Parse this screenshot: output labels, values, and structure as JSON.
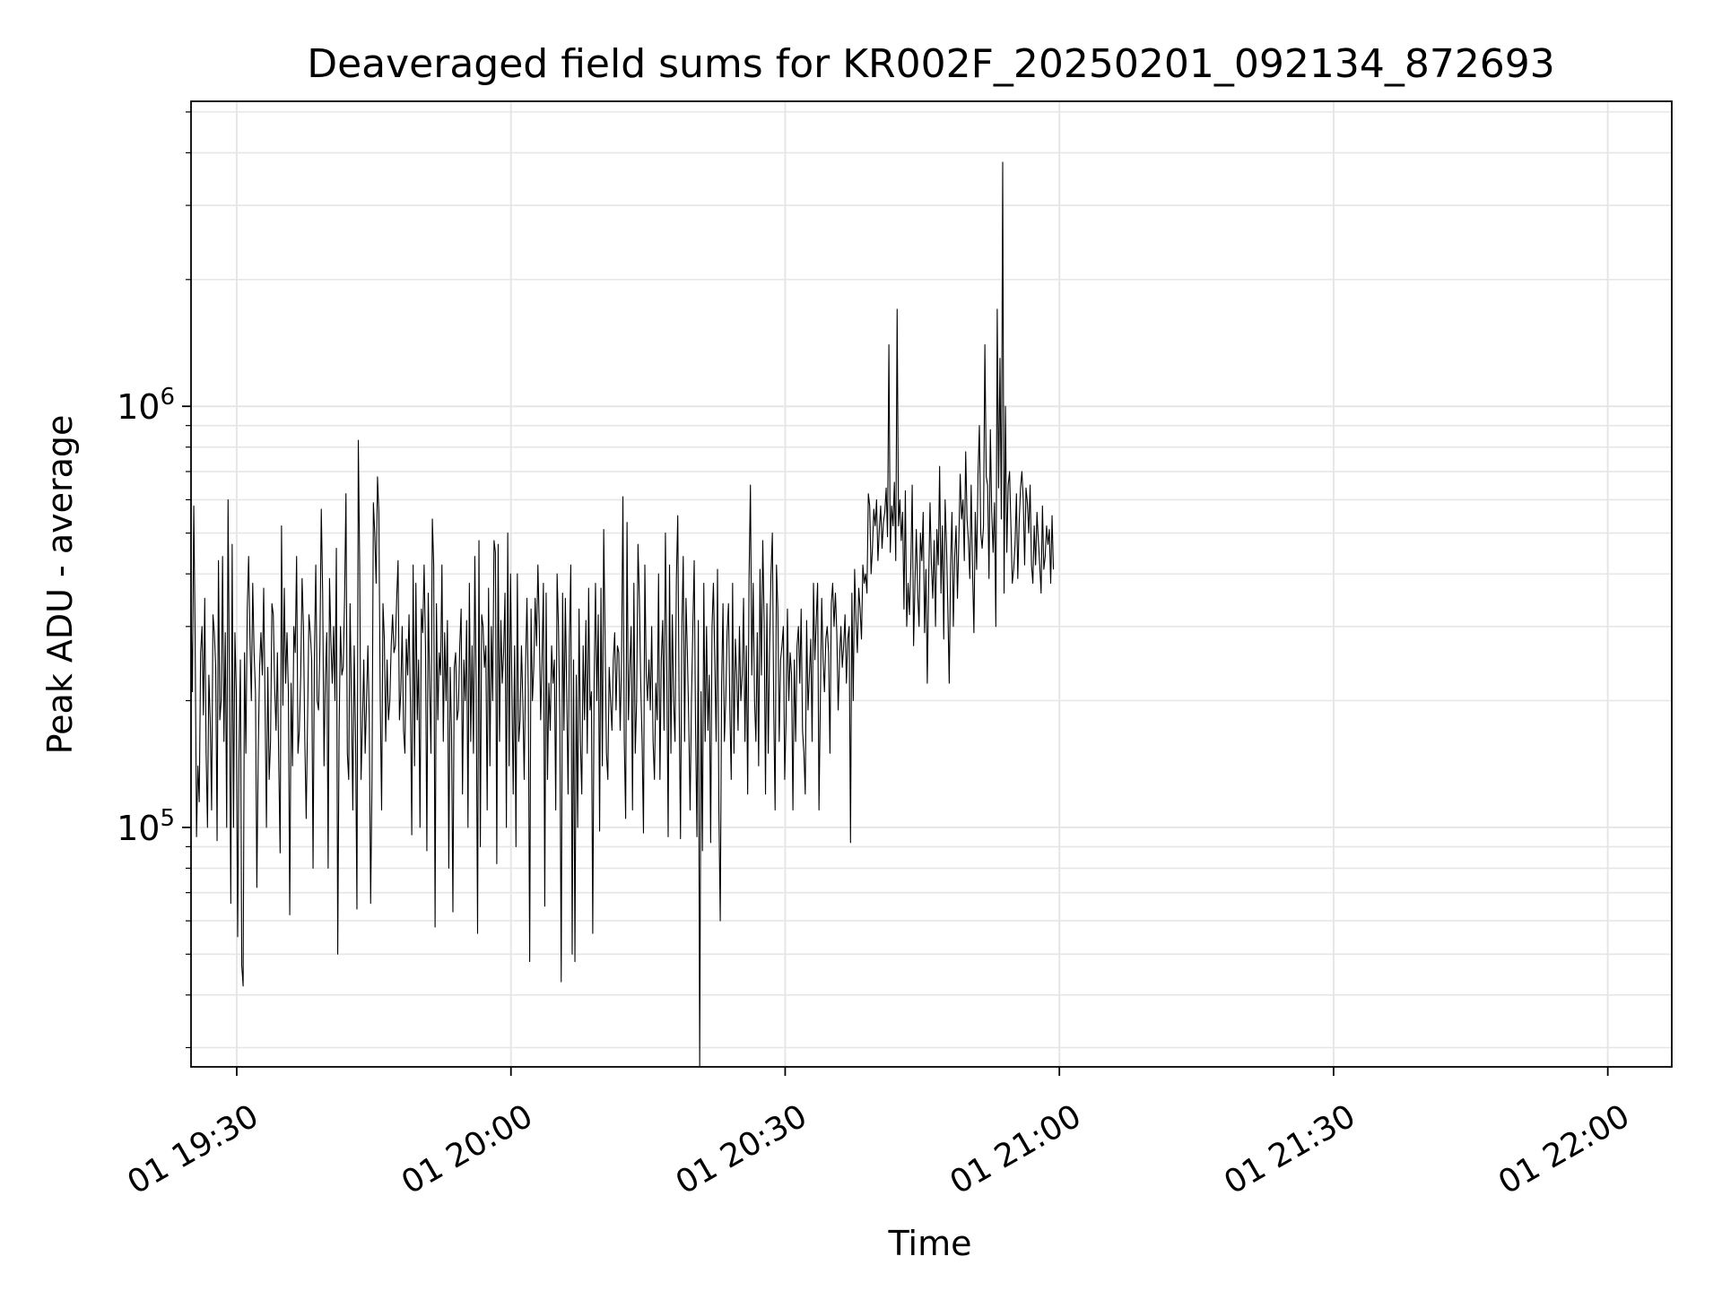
{
  "chart_data": {
    "type": "line",
    "title": "Deaveraged field sums for KR002F_20250201_092134_872693",
    "xlabel": "Time",
    "ylabel": "Peak ADU - average",
    "yscale": "log",
    "ylim": [
      27000,
      5300000
    ],
    "xlim": [
      "2025-02-01 19:25",
      "2025-02-01 22:07"
    ],
    "x_ticks": [
      {
        "t": "2025-02-01 19:30",
        "label": "01 19:30"
      },
      {
        "t": "2025-02-01 20:00",
        "label": "01 20:00"
      },
      {
        "t": "2025-02-01 20:30",
        "label": "01 20:30"
      },
      {
        "t": "2025-02-01 21:00",
        "label": "01 21:00"
      },
      {
        "t": "2025-02-01 21:30",
        "label": "01 21:30"
      },
      {
        "t": "2025-02-01 22:00",
        "label": "01 22:00"
      }
    ],
    "y_ticks": [
      {
        "value": 100000,
        "base": "10",
        "exp": "5"
      },
      {
        "value": 1000000,
        "base": "10",
        "exp": "6"
      }
    ],
    "grid": true,
    "line_color": "#000000",
    "series": [
      {
        "start": "2025-02-01 19:25",
        "step_seconds": 9,
        "values": [
          330000,
          210000,
          580000,
          280000,
          95000,
          140000,
          115000,
          260000,
          300000,
          185000,
          350000,
          150000,
          100000,
          230000,
          180000,
          110000,
          320000,
          290000,
          240000,
          93000,
          430000,
          180000,
          200000,
          440000,
          160000,
          290000,
          100000,
          600000,
          215000,
          66000,
          470000,
          100000,
          290000,
          210000,
          55000,
          150000,
          250000,
          47000,
          42000,
          260000,
          150000,
          330000,
          440000,
          280000,
          200000,
          380000,
          260000,
          210000,
          72000,
          150000,
          240000,
          290000,
          230000,
          370000,
          195000,
          100000,
          240000,
          130000,
          160000,
          340000,
          320000,
          215000,
          170000,
          260000,
          140000,
          87000,
          520000,
          195000,
          370000,
          220000,
          290000,
          210000,
          62000,
          220000,
          140000,
          300000,
          260000,
          440000,
          150000,
          170000,
          230000,
          390000,
          300000,
          160000,
          105000,
          180000,
          320000,
          290000,
          250000,
          80000,
          260000,
          420000,
          200000,
          190000,
          270000,
          570000,
          360000,
          140000,
          230000,
          290000,
          80000,
          390000,
          280000,
          220000,
          300000,
          200000,
          460000,
          50000,
          170000,
          300000,
          230000,
          240000,
          350000,
          620000,
          150000,
          130000,
          340000,
          200000,
          110000,
          270000,
          165000,
          64000,
          830000,
          420000,
          130000,
          175000,
          250000,
          150000,
          200000,
          270000,
          180000,
          66000,
          130000,
          590000,
          500000,
          380000,
          680000,
          560000,
          200000,
          110000,
          340000,
          280000,
          160000,
          250000,
          180000,
          200000,
          270000,
          320000,
          260000,
          270000,
          350000,
          430000,
          180000,
          210000,
          300000,
          170000,
          150000,
          280000,
          230000,
          320000,
          200000,
          96000,
          420000,
          140000,
          380000,
          180000,
          250000,
          100000,
          330000,
          290000,
          420000,
          270000,
          88000,
          360000,
          220000,
          150000,
          540000,
          420000,
          58000,
          340000,
          180000,
          260000,
          230000,
          420000,
          160000,
          290000,
          200000,
          310000,
          80000,
          240000,
          170000,
          63000,
          240000,
          260000,
          180000,
          190000,
          270000,
          330000,
          120000,
          250000,
          200000,
          310000,
          100000,
          380000,
          160000,
          270000,
          150000,
          440000,
          210000,
          56000,
          480000,
          90000,
          320000,
          300000,
          240000,
          270000,
          110000,
          370000,
          140000,
          300000,
          200000,
          480000,
          450000,
          82000,
          470000,
          160000,
          310000,
          220000,
          260000,
          360000,
          100000,
          500000,
          140000,
          400000,
          220000,
          120000,
          270000,
          90000,
          400000,
          160000,
          180000,
          270000,
          200000,
          130000,
          240000,
          350000,
          210000,
          48000,
          330000,
          200000,
          240000,
          350000,
          270000,
          420000,
          300000,
          180000,
          250000,
          380000,
          65000,
          360000,
          130000,
          220000,
          170000,
          270000,
          220000,
          250000,
          110000,
          400000,
          300000,
          180000,
          43000,
          360000,
          170000,
          350000,
          210000,
          120000,
          280000,
          420000,
          50000,
          250000,
          48000,
          230000,
          100000,
          330000,
          160000,
          120000,
          270000,
          180000,
          310000,
          150000,
          370000,
          190000,
          210000,
          56000,
          220000,
          380000,
          200000,
          320000,
          98000,
          370000,
          140000,
          510000,
          280000,
          150000,
          130000,
          240000,
          200000,
          170000,
          250000,
          290000,
          190000,
          270000,
          260000,
          170000,
          250000,
          610000,
          160000,
          105000,
          530000,
          180000,
          240000,
          300000,
          110000,
          380000,
          150000,
          200000,
          470000,
          350000,
          220000,
          160000,
          97000,
          420000,
          230000,
          200000,
          250000,
          190000,
          300000,
          160000,
          130000,
          220000,
          180000,
          400000,
          130000,
          250000,
          310000,
          170000,
          500000,
          240000,
          95000,
          420000,
          150000,
          320000,
          200000,
          160000,
          390000,
          550000,
          200000,
          94000,
          300000,
          440000,
          160000,
          350000,
          260000,
          180000,
          110000,
          200000,
          300000,
          430000,
          170000,
          95000,
          310000,
          27000,
          210000,
          88000,
          380000,
          160000,
          300000,
          170000,
          230000,
          92000,
          300000,
          380000,
          250000,
          160000,
          410000,
          110000,
          60000,
          220000,
          340000,
          160000,
          200000,
          290000,
          340000,
          190000,
          130000,
          380000,
          150000,
          280000,
          230000,
          170000,
          300000,
          200000,
          230000,
          350000,
          160000,
          270000,
          120000,
          390000,
          650000,
          230000,
          380000,
          200000,
          160000,
          290000,
          140000,
          410000,
          230000,
          480000,
          310000,
          120000,
          340000,
          150000,
          270000,
          400000,
          500000,
          190000,
          110000,
          420000,
          330000,
          160000,
          250000,
          270000,
          300000,
          130000,
          180000,
          330000,
          200000,
          260000,
          230000,
          110000,
          250000,
          160000,
          270000,
          300000,
          220000,
          330000,
          170000,
          150000,
          120000,
          310000,
          190000,
          230000,
          280000,
          160000,
          380000,
          250000,
          310000,
          380000,
          110000,
          200000,
          350000,
          250000,
          210000,
          280000,
          300000,
          260000,
          150000,
          340000,
          380000,
          300000,
          360000,
          290000,
          190000,
          250000,
          300000,
          240000,
          270000,
          320000,
          220000,
          280000,
          300000,
          92000,
          360000,
          200000,
          410000,
          310000,
          260000,
          370000,
          330000,
          280000,
          420000,
          380000,
          400000,
          360000,
          620000,
          580000,
          400000,
          460000,
          570000,
          520000,
          600000,
          430000,
          510000,
          580000,
          460000,
          530000,
          560000,
          640000,
          490000,
          1400000,
          450000,
          580000,
          520000,
          660000,
          430000,
          1700000,
          520000,
          600000,
          480000,
          560000,
          330000,
          630000,
          300000,
          380000,
          320000,
          420000,
          650000,
          270000,
          380000,
          510000,
          360000,
          300000,
          500000,
          430000,
          560000,
          290000,
          410000,
          220000,
          380000,
          590000,
          420000,
          350000,
          480000,
          300000,
          510000,
          420000,
          720000,
          360000,
          520000,
          280000,
          600000,
          470000,
          330000,
          220000,
          420000,
          560000,
          300000,
          440000,
          520000,
          350000,
          480000,
          690000,
          540000,
          600000,
          430000,
          780000,
          540000,
          480000,
          390000,
          650000,
          410000,
          290000,
          560000,
          410000,
          690000,
          900000,
          500000,
          460000,
          520000,
          1400000,
          680000,
          650000,
          390000,
          880000,
          560000,
          450000,
          590000,
          300000,
          1700000,
          640000,
          1300000,
          540000,
          3800000,
          360000,
          1000000,
          450000,
          650000,
          700000,
          520000,
          380000,
          410000,
          470000,
          620000,
          390000,
          530000,
          640000,
          700000,
          600000,
          420000,
          640000,
          590000,
          500000,
          650000,
          420000,
          380000,
          520000,
          420000,
          560000,
          480000,
          420000,
          360000,
          580000,
          410000,
          440000,
          520000,
          470000,
          510000,
          380000,
          550000,
          410000
        ]
      }
    ]
  }
}
